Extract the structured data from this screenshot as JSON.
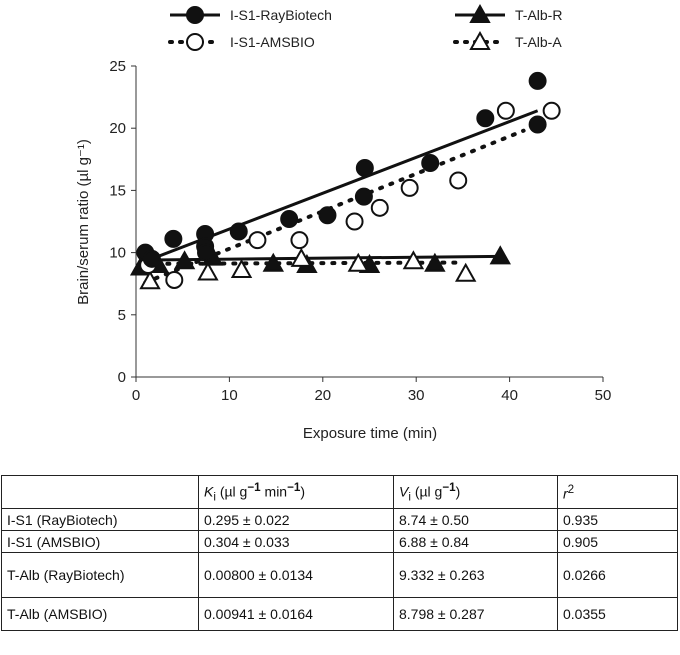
{
  "chart_data": {
    "type": "scatter",
    "xlabel": "Exposure time (min)",
    "ylabel": "Brain/serum ratio (µl g⁻¹)",
    "xlim": [
      0,
      50
    ],
    "ylim": [
      0,
      25
    ],
    "xticks": [
      "0",
      "10",
      "20",
      "30",
      "40",
      "50"
    ],
    "yticks": [
      "0",
      "5",
      "10",
      "15",
      "20",
      "25"
    ],
    "legend_position": "top",
    "series": [
      {
        "name": "I-S1-RayBiotech",
        "marker": "filled-circle",
        "line": "solid",
        "points": [
          [
            1,
            10
          ],
          [
            1.7,
            9.5
          ],
          [
            4,
            11.1
          ],
          [
            7.4,
            11.5
          ],
          [
            7.4,
            10.5
          ],
          [
            7.5,
            10
          ],
          [
            11,
            11.7
          ],
          [
            16.4,
            12.7
          ],
          [
            20.5,
            13
          ],
          [
            24.4,
            14.5
          ],
          [
            24.5,
            16.8
          ],
          [
            31.5,
            17.2
          ],
          [
            37.4,
            20.8
          ],
          [
            43,
            23.8
          ],
          [
            43,
            20.3
          ]
        ],
        "fit": [
          [
            1,
            9.3
          ],
          [
            43,
            21.4
          ]
        ]
      },
      {
        "name": "I-S1-AMSBIO",
        "marker": "open-circle",
        "line": "dotted",
        "points": [
          [
            1.3,
            9
          ],
          [
            4.1,
            7.8
          ],
          [
            13,
            11
          ],
          [
            17.5,
            11
          ],
          [
            23.4,
            12.5
          ],
          [
            26.1,
            13.6
          ],
          [
            29.3,
            15.2
          ],
          [
            34.5,
            15.8
          ],
          [
            39.6,
            21.4
          ],
          [
            44.5,
            21.4
          ]
        ],
        "fit": [
          [
            1,
            7.6
          ],
          [
            41.5,
            19.8
          ]
        ]
      },
      {
        "name": "T-Alb-R",
        "marker": "filled-triangle",
        "line": "solid",
        "points": [
          [
            0.5,
            8.8
          ],
          [
            1.5,
            9.4
          ],
          [
            2.4,
            9
          ],
          [
            5.2,
            9.3
          ],
          [
            8.2,
            9.6
          ],
          [
            14.7,
            9.1
          ],
          [
            18.3,
            9
          ],
          [
            25,
            9
          ],
          [
            32,
            9.1
          ],
          [
            39,
            9.7
          ]
        ],
        "fit": [
          [
            0.5,
            9.4
          ],
          [
            39,
            9.7
          ]
        ]
      },
      {
        "name": "T-Alb-A",
        "marker": "open-triangle",
        "line": "dotted",
        "points": [
          [
            1.5,
            7.7
          ],
          [
            7.7,
            8.4
          ],
          [
            11.3,
            8.6
          ],
          [
            17.7,
            9.5
          ],
          [
            23.8,
            9.1
          ],
          [
            29.7,
            9.3
          ],
          [
            35.3,
            8.3
          ]
        ],
        "fit": [
          [
            1,
            9.1
          ],
          [
            35,
            9.2
          ]
        ]
      }
    ]
  },
  "table": {
    "headers": [
      "",
      "K_i (µl g⁻¹ min⁻¹)",
      "V_i (µl g⁻¹)",
      "r²"
    ],
    "rows": [
      [
        "I-S1 (RayBiotech)",
        "0.295 ± 0.022",
        "8.74 ± 0.50",
        "0.935"
      ],
      [
        "I-S1 (AMSBIO)",
        "0.304 ± 0.033",
        "6.88 ± 0.84",
        "0.905"
      ],
      [
        "T-Alb (RayBiotech)",
        "0.00800 ± 0.0134",
        "9.332 ± 0.263",
        "0.0266"
      ],
      [
        "T-Alb (AMSBIO)",
        "0.00941 ± 0.0164",
        "8.798 ± 0.287",
        "0.0355"
      ]
    ]
  }
}
